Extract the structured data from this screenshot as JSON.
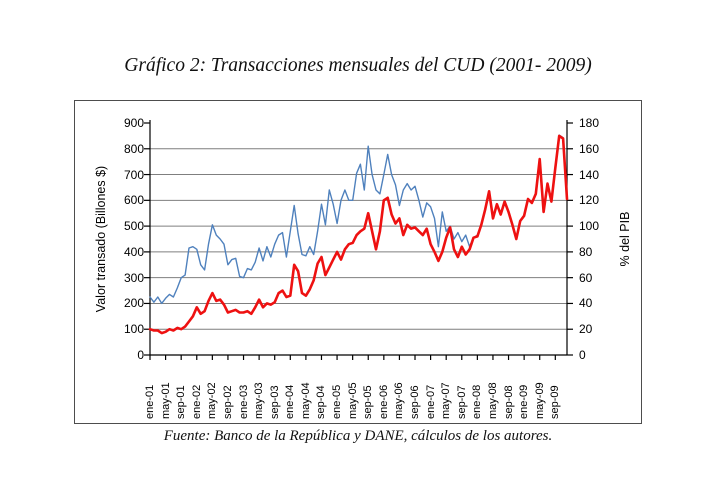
{
  "page": {
    "title": "Gráfico 2: Transacciones mensuales del CUD (2001- 2009)",
    "source_note": "Fuente: Banco de la República y DANE, cálculos de los autores."
  },
  "chart_data": {
    "type": "line",
    "title": "Gráfico 2: Transacciones mensuales del CUD (2001- 2009)",
    "ylabel_left": "Valor transado (Billones $)",
    "ylabel_right": "% del PIB",
    "y_left_range": [
      0,
      900
    ],
    "y_left_ticks": [
      0,
      100,
      200,
      300,
      400,
      500,
      600,
      700,
      800,
      900
    ],
    "y_right_range": [
      0,
      180
    ],
    "y_right_ticks": [
      0,
      20,
      40,
      60,
      80,
      100,
      120,
      140,
      160,
      180
    ],
    "grid": "horizontal gridlines on",
    "legend_position": "none",
    "months_total": 108,
    "x_first_month": "ene-01",
    "x_last_month": "dic-09",
    "x_tick_month_indices": [
      0,
      4,
      8,
      12,
      16,
      20,
      24,
      28,
      32,
      36,
      40,
      44,
      48,
      52,
      56,
      60,
      64,
      68,
      72,
      76,
      80,
      84,
      88,
      92,
      96,
      100,
      104
    ],
    "x_tick_labels": [
      "ene-01",
      "may-01",
      "sep-01",
      "ene-02",
      "may-02",
      "sep-02",
      "ene-03",
      "may-03",
      "sep-03",
      "ene-04",
      "may-04",
      "sep-04",
      "ene-05",
      "may-05",
      "sep-05",
      "ene-06",
      "may-06",
      "sep-06",
      "ene-07",
      "may-07",
      "sep-07",
      "ene-08",
      "may-08",
      "sep-08",
      "ene-09",
      "may-09",
      "sep-09"
    ],
    "series": [
      {
        "name": "Valor transado (Billones $)",
        "axis": "left",
        "color": "#4f81bd",
        "stroke_width": 1.4,
        "values": [
          225,
          205,
          225,
          200,
          220,
          235,
          225,
          260,
          300,
          310,
          415,
          420,
          410,
          350,
          330,
          430,
          505,
          465,
          450,
          430,
          350,
          370,
          375,
          305,
          300,
          335,
          330,
          360,
          415,
          365,
          420,
          380,
          430,
          465,
          475,
          380,
          480,
          580,
          470,
          390,
          385,
          420,
          390,
          480,
          585,
          505,
          640,
          585,
          510,
          600,
          640,
          600,
          600,
          705,
          740,
          640,
          810,
          700,
          640,
          625,
          700,
          778,
          700,
          660,
          580,
          640,
          665,
          640,
          655,
          600,
          535,
          590,
          575,
          530,
          420,
          555,
          480,
          500,
          450,
          475,
          440,
          465,
          420,
          455,
          465,
          505,
          565,
          635,
          530,
          585,
          545,
          595,
          555,
          505,
          450,
          520,
          540,
          605,
          590,
          625,
          760,
          555,
          665,
          595,
          725,
          853,
          843,
          607
        ]
      },
      {
        "name": "% del PIB",
        "axis": "right",
        "color": "#ee1111",
        "stroke_width": 2.6,
        "values": [
          20,
          19,
          19,
          17,
          18,
          20,
          19,
          21,
          20,
          22,
          26,
          30,
          37,
          32,
          34,
          42,
          48,
          42,
          43,
          39,
          33,
          34,
          35,
          33,
          33,
          34,
          32,
          37,
          43,
          37,
          40,
          39,
          41,
          48,
          50,
          45,
          46,
          70,
          65,
          48,
          46,
          51,
          58,
          71,
          76,
          62,
          68,
          74,
          80,
          74,
          82,
          86,
          87,
          93,
          96,
          98,
          110,
          96,
          82,
          96,
          120,
          122,
          109,
          102,
          106,
          93,
          101,
          98,
          99,
          96,
          93,
          98,
          86,
          80,
          73,
          80,
          91,
          99,
          82,
          76,
          84,
          78,
          82,
          91,
          92,
          101,
          113,
          127,
          106,
          117,
          109,
          119,
          111,
          101,
          90,
          104,
          108,
          121,
          118,
          125,
          152,
          111,
          133,
          119,
          145,
          170,
          168,
          121
        ]
      }
    ],
    "colors": {
      "gridline": "#7f7f7f",
      "axis": "#000000",
      "figure_border": "#4d4d4d"
    }
  }
}
